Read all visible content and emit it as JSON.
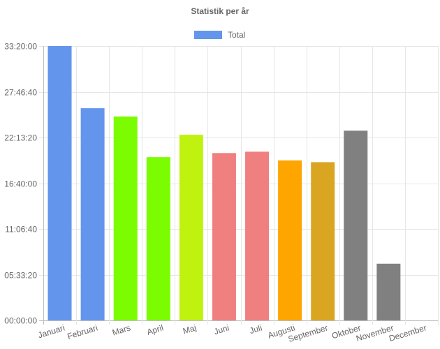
{
  "chart_data": {
    "type": "bar",
    "title": "Statistik per år",
    "legend": {
      "label": "Total",
      "color": "#6495ed",
      "placement": "top-center"
    },
    "categories": [
      "Januari",
      "Februari",
      "Mars",
      "April",
      "Maj",
      "Juni",
      "Juli",
      "Augusti",
      "September",
      "Oktober",
      "November",
      "December"
    ],
    "series": [
      {
        "name": "Total",
        "values_seconds": [
          120000,
          92800,
          89200,
          71400,
          81200,
          73200,
          73800,
          70000,
          69200,
          83000,
          24800,
          0
        ],
        "values_label": [
          "33:20:00",
          "25:46:40",
          "24:46:40",
          "19:50:00",
          "22:33:20",
          "20:20:00",
          "20:30:00",
          "19:26:40",
          "19:13:20",
          "23:03:20",
          "06:53:20",
          "00:00:00"
        ],
        "colors": [
          "#6495ed",
          "#6495ed",
          "#7cfc00",
          "#7cfc00",
          "#bff20f",
          "#f08080",
          "#f08080",
          "#ffa500",
          "#daa520",
          "#808080",
          "#808080",
          "#808080"
        ]
      }
    ],
    "yaxis": {
      "ylim_seconds": [
        0,
        120000
      ],
      "ticks_seconds": [
        0,
        20000,
        40000,
        60000,
        80000,
        100000,
        120000
      ],
      "tick_labels": [
        "00:00:00",
        "05:33:20",
        "11:06:40",
        "16:40:00",
        "22:13:20",
        "27:46:40",
        "33:20:00"
      ]
    },
    "grid": true
  }
}
